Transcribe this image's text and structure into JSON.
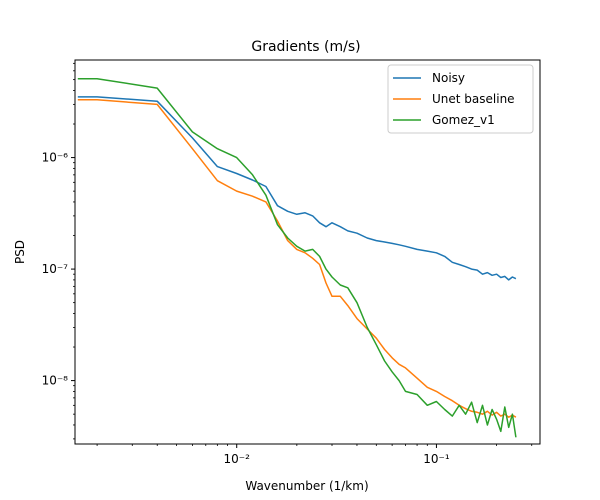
{
  "chart_data": {
    "type": "line",
    "title": "Gradients (m/s)",
    "xlabel": "Wavenumber (1/km)",
    "ylabel": "PSD",
    "xscale": "log",
    "yscale": "log",
    "xlim": [
      0.00155,
      0.33
    ],
    "ylim": [
      2.7e-09,
      7.5e-06
    ],
    "grid": false,
    "legend_position": "upper-right",
    "x_ticks": [
      {
        "value": 0.01,
        "label": "10⁻²"
      },
      {
        "value": 0.1,
        "label": "10⁻¹"
      }
    ],
    "y_ticks": [
      {
        "value": 1e-08,
        "label": "10⁻⁸"
      },
      {
        "value": 1e-07,
        "label": "10⁻⁷"
      },
      {
        "value": 1e-06,
        "label": "10⁻⁶"
      }
    ],
    "series": [
      {
        "name": "Noisy",
        "color": "#1f77b4",
        "x": [
          0.0016,
          0.002,
          0.004,
          0.006,
          0.008,
          0.01,
          0.012,
          0.014,
          0.016,
          0.018,
          0.02,
          0.022,
          0.024,
          0.026,
          0.028,
          0.03,
          0.033,
          0.036,
          0.04,
          0.045,
          0.05,
          0.055,
          0.06,
          0.065,
          0.07,
          0.08,
          0.09,
          0.1,
          0.11,
          0.12,
          0.13,
          0.14,
          0.15,
          0.16,
          0.17,
          0.18,
          0.19,
          0.2,
          0.21,
          0.22,
          0.23,
          0.24,
          0.25
        ],
        "y": [
          3.5e-06,
          3.5e-06,
          3.2e-06,
          1.5e-06,
          8.3e-07,
          7.2e-07,
          6.3e-07,
          5.5e-07,
          3.7e-07,
          3.3e-07,
          3.1e-07,
          3.2e-07,
          3e-07,
          2.6e-07,
          2.4e-07,
          2.6e-07,
          2.4e-07,
          2.2e-07,
          2.1e-07,
          1.9e-07,
          1.8e-07,
          1.75e-07,
          1.7e-07,
          1.65e-07,
          1.6e-07,
          1.5e-07,
          1.45e-07,
          1.4e-07,
          1.3e-07,
          1.15e-07,
          1.1e-07,
          1.05e-07,
          1e-07,
          9.8e-08,
          9e-08,
          9.3e-08,
          8.8e-08,
          9e-08,
          8.4e-08,
          8.6e-08,
          8e-08,
          8.5e-08,
          8.2e-08
        ]
      },
      {
        "name": "Unet baseline",
        "color": "#ff7f0e",
        "x": [
          0.0016,
          0.002,
          0.004,
          0.006,
          0.008,
          0.01,
          0.012,
          0.014,
          0.016,
          0.018,
          0.02,
          0.022,
          0.024,
          0.026,
          0.028,
          0.03,
          0.033,
          0.036,
          0.04,
          0.045,
          0.05,
          0.055,
          0.06,
          0.065,
          0.07,
          0.08,
          0.09,
          0.1,
          0.11,
          0.12,
          0.13,
          0.14,
          0.15,
          0.16,
          0.17,
          0.18,
          0.19,
          0.2,
          0.21,
          0.22,
          0.23,
          0.24,
          0.25
        ],
        "y": [
          3.3e-06,
          3.3e-06,
          3e-06,
          1.2e-06,
          6.2e-07,
          5e-07,
          4.5e-07,
          4e-07,
          2.7e-07,
          1.8e-07,
          1.5e-07,
          1.4e-07,
          1.25e-07,
          1.1e-07,
          7.5e-08,
          5.7e-08,
          5.7e-08,
          4.7e-08,
          3.6e-08,
          2.9e-08,
          2.4e-08,
          1.9e-08,
          1.6e-08,
          1.4e-08,
          1.3e-08,
          1.05e-08,
          8.7e-09,
          8e-09,
          7.2e-09,
          6.6e-09,
          6e-09,
          5.6e-09,
          5.3e-09,
          5.2e-09,
          5e-09,
          5.3e-09,
          4.9e-09,
          5.2e-09,
          4.8e-09,
          5e-09,
          4.7e-09,
          4.9e-09,
          4.7e-09
        ]
      },
      {
        "name": "Gomez_v1",
        "color": "#2ca02c",
        "x": [
          0.0016,
          0.002,
          0.004,
          0.006,
          0.008,
          0.01,
          0.012,
          0.014,
          0.016,
          0.018,
          0.02,
          0.022,
          0.024,
          0.026,
          0.028,
          0.03,
          0.033,
          0.036,
          0.04,
          0.045,
          0.05,
          0.055,
          0.06,
          0.065,
          0.07,
          0.08,
          0.09,
          0.1,
          0.11,
          0.12,
          0.13,
          0.14,
          0.15,
          0.16,
          0.17,
          0.18,
          0.19,
          0.2,
          0.21,
          0.22,
          0.23,
          0.24,
          0.25
        ],
        "y": [
          5.1e-06,
          5.1e-06,
          4.2e-06,
          1.7e-06,
          1.2e-06,
          1e-06,
          7e-07,
          4.6e-07,
          2.5e-07,
          1.9e-07,
          1.6e-07,
          1.45e-07,
          1.5e-07,
          1.3e-07,
          1e-07,
          8.5e-08,
          7.2e-08,
          6.8e-08,
          5e-08,
          3e-08,
          2.1e-08,
          1.5e-08,
          1.2e-08,
          1e-08,
          8e-09,
          7.5e-09,
          6e-09,
          6.5e-09,
          5.5e-09,
          4.8e-09,
          6e-09,
          5e-09,
          6.4e-09,
          4.2e-09,
          6e-09,
          4e-09,
          5.5e-09,
          4.5e-09,
          3.5e-09,
          5.8e-09,
          3.8e-09,
          5e-09,
          3.1e-09
        ]
      }
    ]
  }
}
